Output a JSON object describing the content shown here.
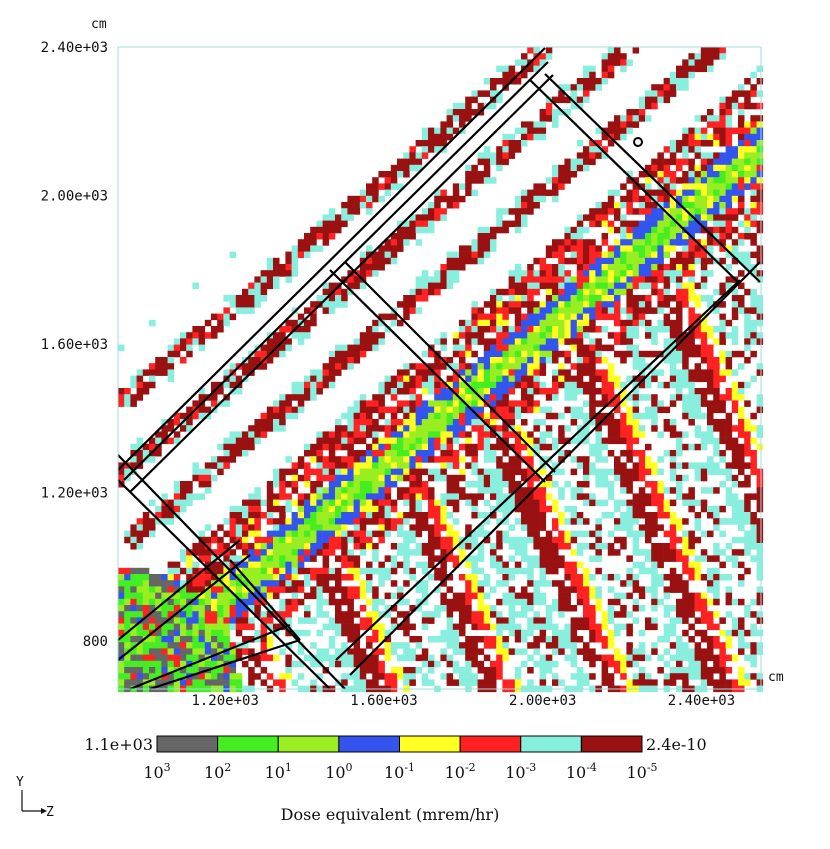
{
  "chart_data": {
    "type": "heatmap",
    "title": "",
    "colorbar_label": "Dose equivalent (mrem/hr)",
    "x_unit": "cm",
    "y_unit": "cm",
    "xlim": [
      930,
      2550
    ],
    "ylim": [
      670,
      2400
    ],
    "x_ticks": [
      {
        "value": 1200,
        "label": "1.20e+03"
      },
      {
        "value": 1600,
        "label": "1.60e+03"
      },
      {
        "value": 2000,
        "label": "2.00e+03"
      },
      {
        "value": 2400,
        "label": "2.40e+03"
      }
    ],
    "y_ticks": [
      {
        "value": 800,
        "label": "800"
      },
      {
        "value": 1200,
        "label": "1.20e+03"
      },
      {
        "value": 1600,
        "label": "1.60e+03"
      },
      {
        "value": 2000,
        "label": "2.00e+03"
      },
      {
        "value": 2400,
        "label": "2.40e+03"
      }
    ],
    "color_max_label": "1.1e+03",
    "color_min_label": "2.4e-10",
    "levels": [
      {
        "base": "10",
        "exp": "3"
      },
      {
        "base": "10",
        "exp": "2"
      },
      {
        "base": "10",
        "exp": "1"
      },
      {
        "base": "10",
        "exp": "0"
      },
      {
        "base": "10",
        "exp": "-1"
      },
      {
        "base": "10",
        "exp": "-2"
      },
      {
        "base": "10",
        "exp": "-3"
      },
      {
        "base": "10",
        "exp": "-4"
      },
      {
        "base": "10",
        "exp": "-5"
      }
    ],
    "colors": [
      "#666666",
      "#44ee22",
      "#99ee22",
      "#3355ee",
      "#ffff22",
      "#ff2222",
      "#88eedd",
      "#991111"
    ],
    "grid": false,
    "axis_orientation": {
      "vertical": "Y",
      "horizontal": "Z"
    }
  }
}
